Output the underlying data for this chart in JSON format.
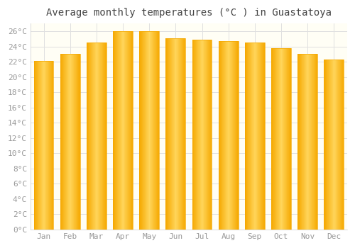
{
  "title": "Average monthly temperatures (°C ) in Guastatoya",
  "months": [
    "Jan",
    "Feb",
    "Mar",
    "Apr",
    "May",
    "Jun",
    "Jul",
    "Aug",
    "Sep",
    "Oct",
    "Nov",
    "Dec"
  ],
  "values": [
    22.1,
    23.0,
    24.5,
    26.0,
    26.0,
    25.1,
    24.9,
    24.7,
    24.5,
    23.8,
    23.0,
    22.3
  ],
  "bar_color_center": "#FFD55A",
  "bar_color_edge": "#F5A800",
  "background_color": "#ffffff",
  "plot_bg_color": "#fffef5",
  "grid_color": "#e0e0e0",
  "ylim": [
    0,
    27
  ],
  "yticks": [
    0,
    2,
    4,
    6,
    8,
    10,
    12,
    14,
    16,
    18,
    20,
    22,
    24,
    26
  ],
  "title_fontsize": 10,
  "tick_fontsize": 8,
  "tick_color": "#999999",
  "font_family": "monospace"
}
